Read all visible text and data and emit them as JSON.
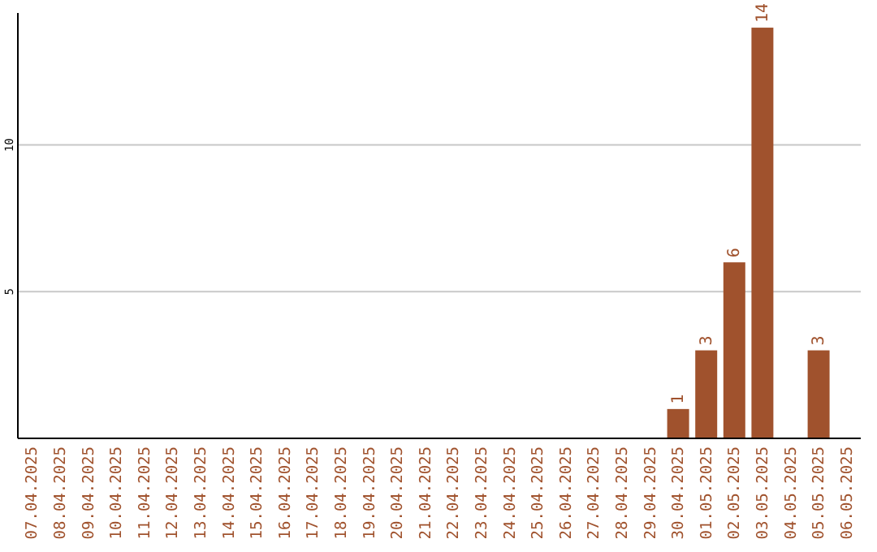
{
  "chart_data": {
    "type": "bar",
    "categories": [
      "07.04.2025",
      "08.04.2025",
      "09.04.2025",
      "10.04.2025",
      "11.04.2025",
      "12.04.2025",
      "13.04.2025",
      "14.04.2025",
      "15.04.2025",
      "16.04.2025",
      "17.04.2025",
      "18.04.2025",
      "19.04.2025",
      "20.04.2025",
      "21.04.2025",
      "22.04.2025",
      "23.04.2025",
      "24.04.2025",
      "25.04.2025",
      "26.04.2025",
      "27.04.2025",
      "28.04.2025",
      "29.04.2025",
      "30.04.2025",
      "01.05.2025",
      "02.05.2025",
      "03.05.2025",
      "04.05.2025",
      "05.05.2025",
      "06.05.2025"
    ],
    "values": [
      null,
      null,
      null,
      null,
      null,
      null,
      null,
      null,
      null,
      null,
      null,
      null,
      null,
      null,
      null,
      null,
      null,
      null,
      null,
      null,
      null,
      null,
      null,
      1,
      3,
      6,
      14,
      null,
      3,
      null
    ],
    "color": "#a0522d",
    "ylim": [
      0,
      14.5
    ],
    "yticks": [
      5,
      10
    ],
    "grid": "y",
    "data_labels": true
  }
}
